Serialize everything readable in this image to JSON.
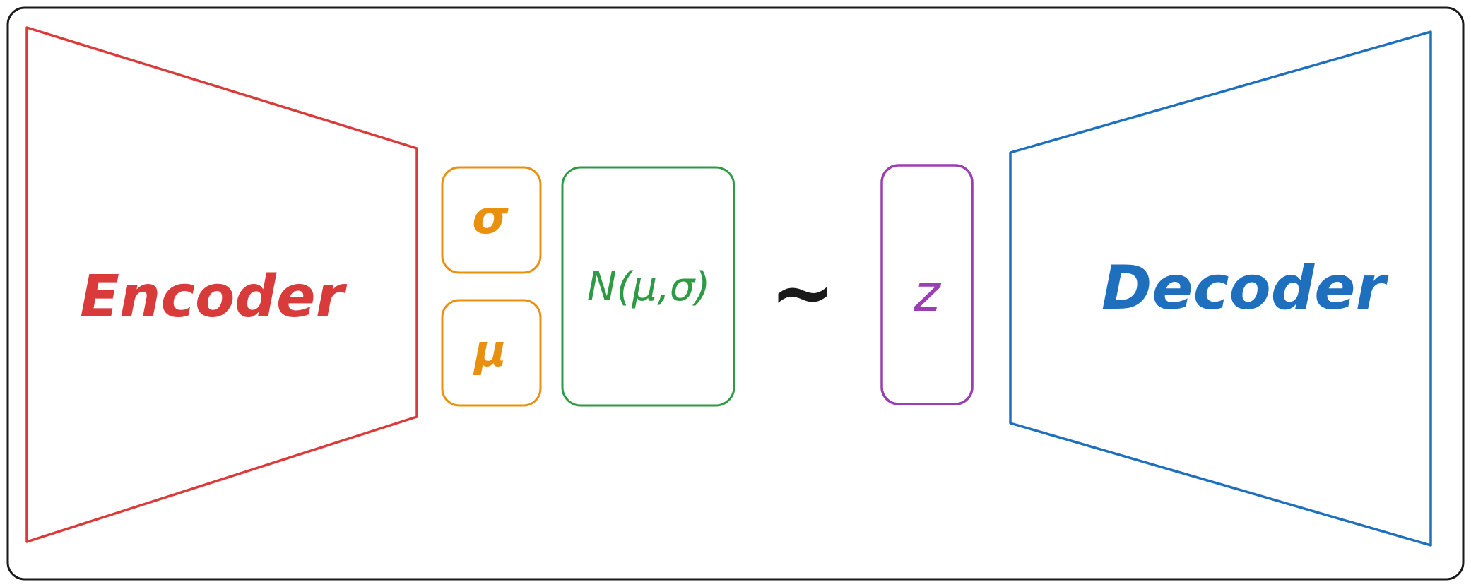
{
  "encoder": {
    "label": "Encoder",
    "color": "#d93a3a"
  },
  "sigma_box": {
    "label": "σ",
    "color": "#e9900f"
  },
  "mu_box": {
    "label": "μ",
    "color": "#e9900f"
  },
  "distribution_box": {
    "label": "N(μ,σ)",
    "color": "#2f9a44"
  },
  "sample_symbol": {
    "label": "~",
    "color": "#1a1a1a"
  },
  "latent_box": {
    "label": "z",
    "color": "#9b3db3"
  },
  "decoder": {
    "label": "Decoder",
    "color": "#1f6fbf"
  },
  "frame": {
    "color": "#1a1a1a"
  }
}
